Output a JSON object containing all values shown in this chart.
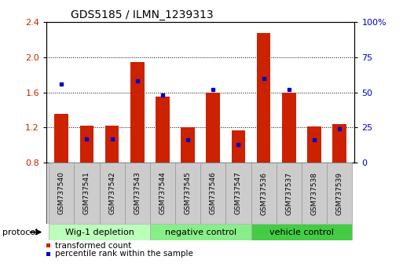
{
  "title": "GDS5185 / ILMN_1239313",
  "samples": [
    "GSM737540",
    "GSM737541",
    "GSM737542",
    "GSM737543",
    "GSM737544",
    "GSM737545",
    "GSM737546",
    "GSM737547",
    "GSM737536",
    "GSM737537",
    "GSM737538",
    "GSM737539"
  ],
  "transformed_count": [
    1.36,
    1.22,
    1.22,
    1.95,
    1.55,
    1.2,
    1.6,
    1.17,
    2.28,
    1.6,
    1.21,
    1.24
  ],
  "percentile_rank": [
    56,
    17,
    17,
    58,
    48,
    16,
    52,
    13,
    60,
    52,
    16,
    24
  ],
  "groups": [
    {
      "label": "Wig-1 depletion",
      "start": 0,
      "end": 4,
      "color": "#bbffbb"
    },
    {
      "label": "negative control",
      "start": 4,
      "end": 8,
      "color": "#88ee88"
    },
    {
      "label": "vehicle control",
      "start": 8,
      "end": 12,
      "color": "#44cc44"
    }
  ],
  "ylim_left": [
    0.8,
    2.4
  ],
  "ylim_right": [
    0,
    100
  ],
  "yticks_left": [
    0.8,
    1.2,
    1.6,
    2.0,
    2.4
  ],
  "yticks_right": [
    0,
    25,
    50,
    75,
    100
  ],
  "bar_color": "#cc2200",
  "dot_color": "#0000cc",
  "bar_width": 0.55,
  "tick_label_color_left": "#cc2200",
  "tick_label_color_right": "#0000cc",
  "legend_items": [
    {
      "color": "#cc2200",
      "label": "transformed count"
    },
    {
      "color": "#0000cc",
      "label": "percentile rank within the sample"
    }
  ],
  "protocol_label": "protocol",
  "bar_bottom": 0.8
}
